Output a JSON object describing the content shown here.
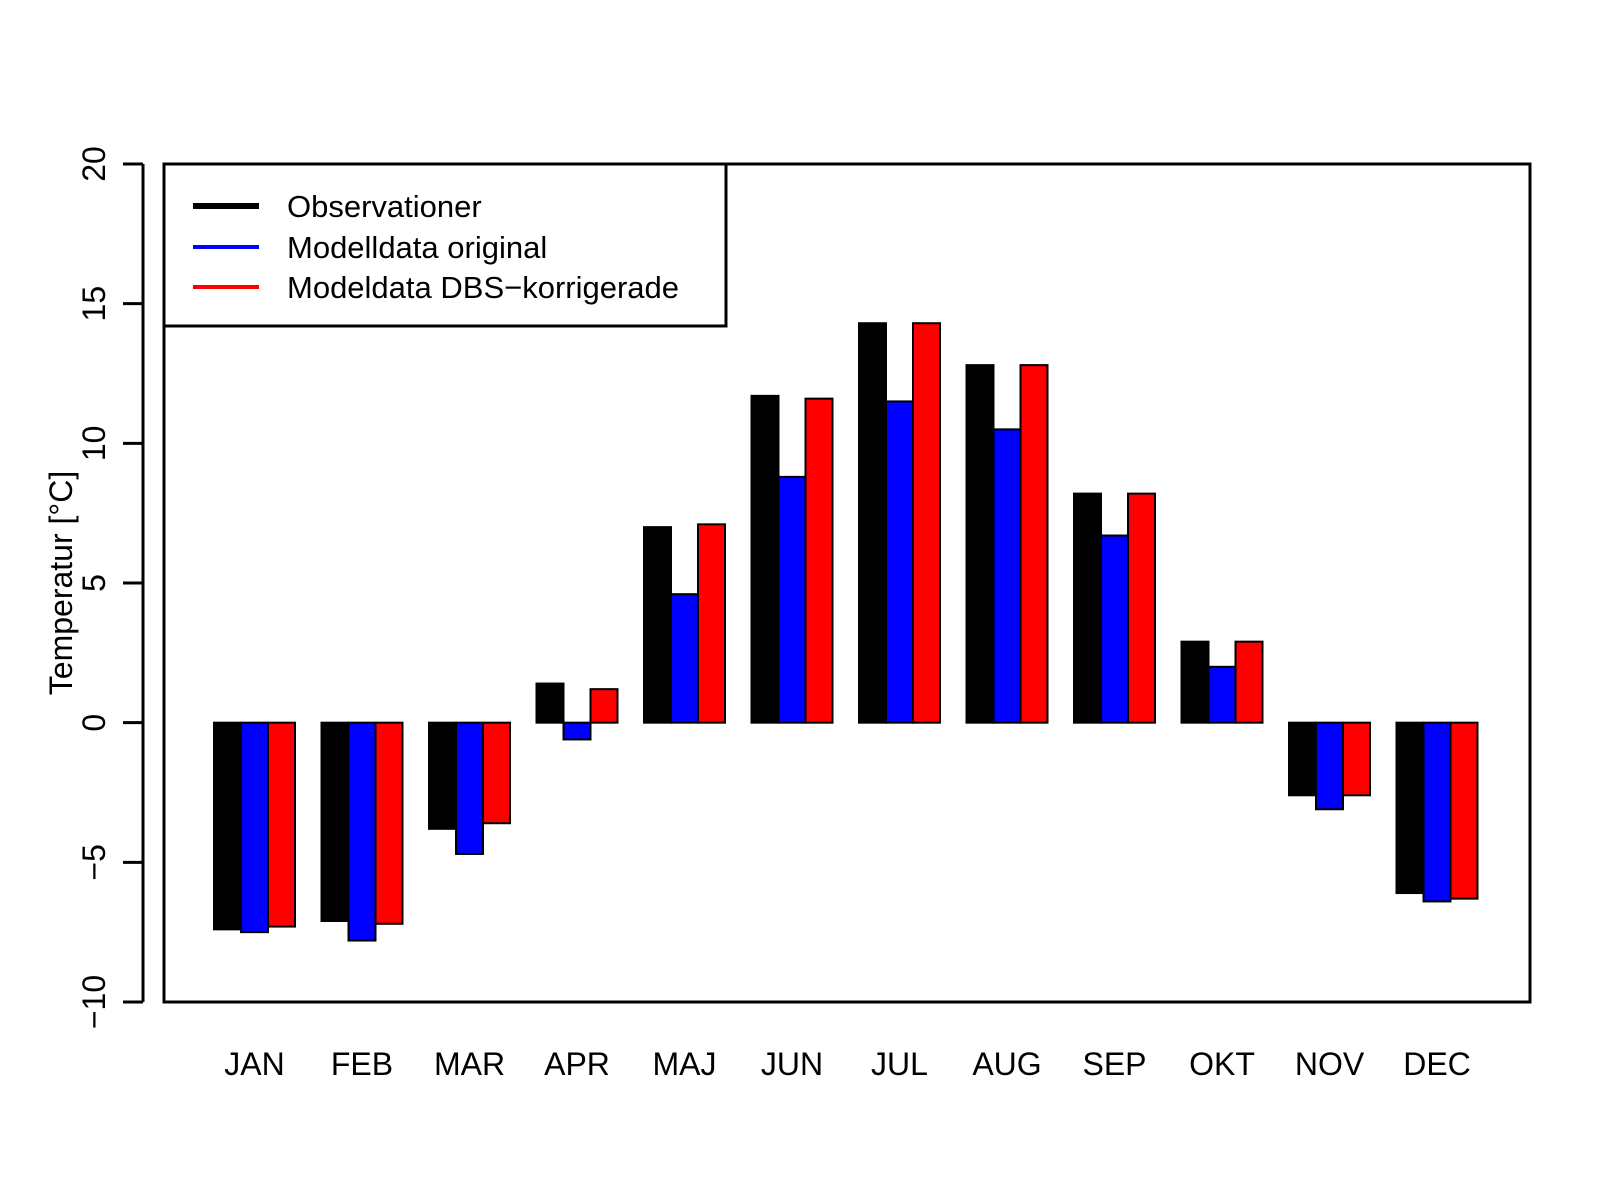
{
  "chart_data": {
    "type": "bar",
    "title": "",
    "xlabel": "",
    "ylabel": "Temperatur [°C]",
    "ylim": [
      -10,
      20
    ],
    "yticks": [
      -10,
      -5,
      0,
      5,
      10,
      15,
      20
    ],
    "ytick_labels": [
      "−10",
      "−5",
      "0",
      "5",
      "10",
      "15",
      "20"
    ],
    "grid": false,
    "legend_position": "top-left",
    "categories": [
      "JAN",
      "FEB",
      "MAR",
      "APR",
      "MAJ",
      "JUN",
      "JUL",
      "AUG",
      "SEP",
      "OKT",
      "NOV",
      "DEC"
    ],
    "series": [
      {
        "name": "Observationer",
        "color": "#000000",
        "values": [
          -7.4,
          -7.1,
          -3.8,
          1.4,
          7.0,
          11.7,
          14.3,
          12.8,
          8.2,
          2.9,
          -2.6,
          -6.1
        ]
      },
      {
        "name": "Modelldata original",
        "color": "#0000ff",
        "values": [
          -7.5,
          -7.8,
          -4.7,
          -0.6,
          4.6,
          8.8,
          11.5,
          10.5,
          6.7,
          2.0,
          -3.1,
          -6.4
        ]
      },
      {
        "name": "Modeldata DBS−korrigerade",
        "color": "#ff0000",
        "values": [
          -7.3,
          -7.2,
          -3.6,
          1.2,
          7.1,
          11.6,
          14.3,
          12.8,
          8.2,
          2.9,
          -2.6,
          -6.3
        ]
      }
    ]
  }
}
